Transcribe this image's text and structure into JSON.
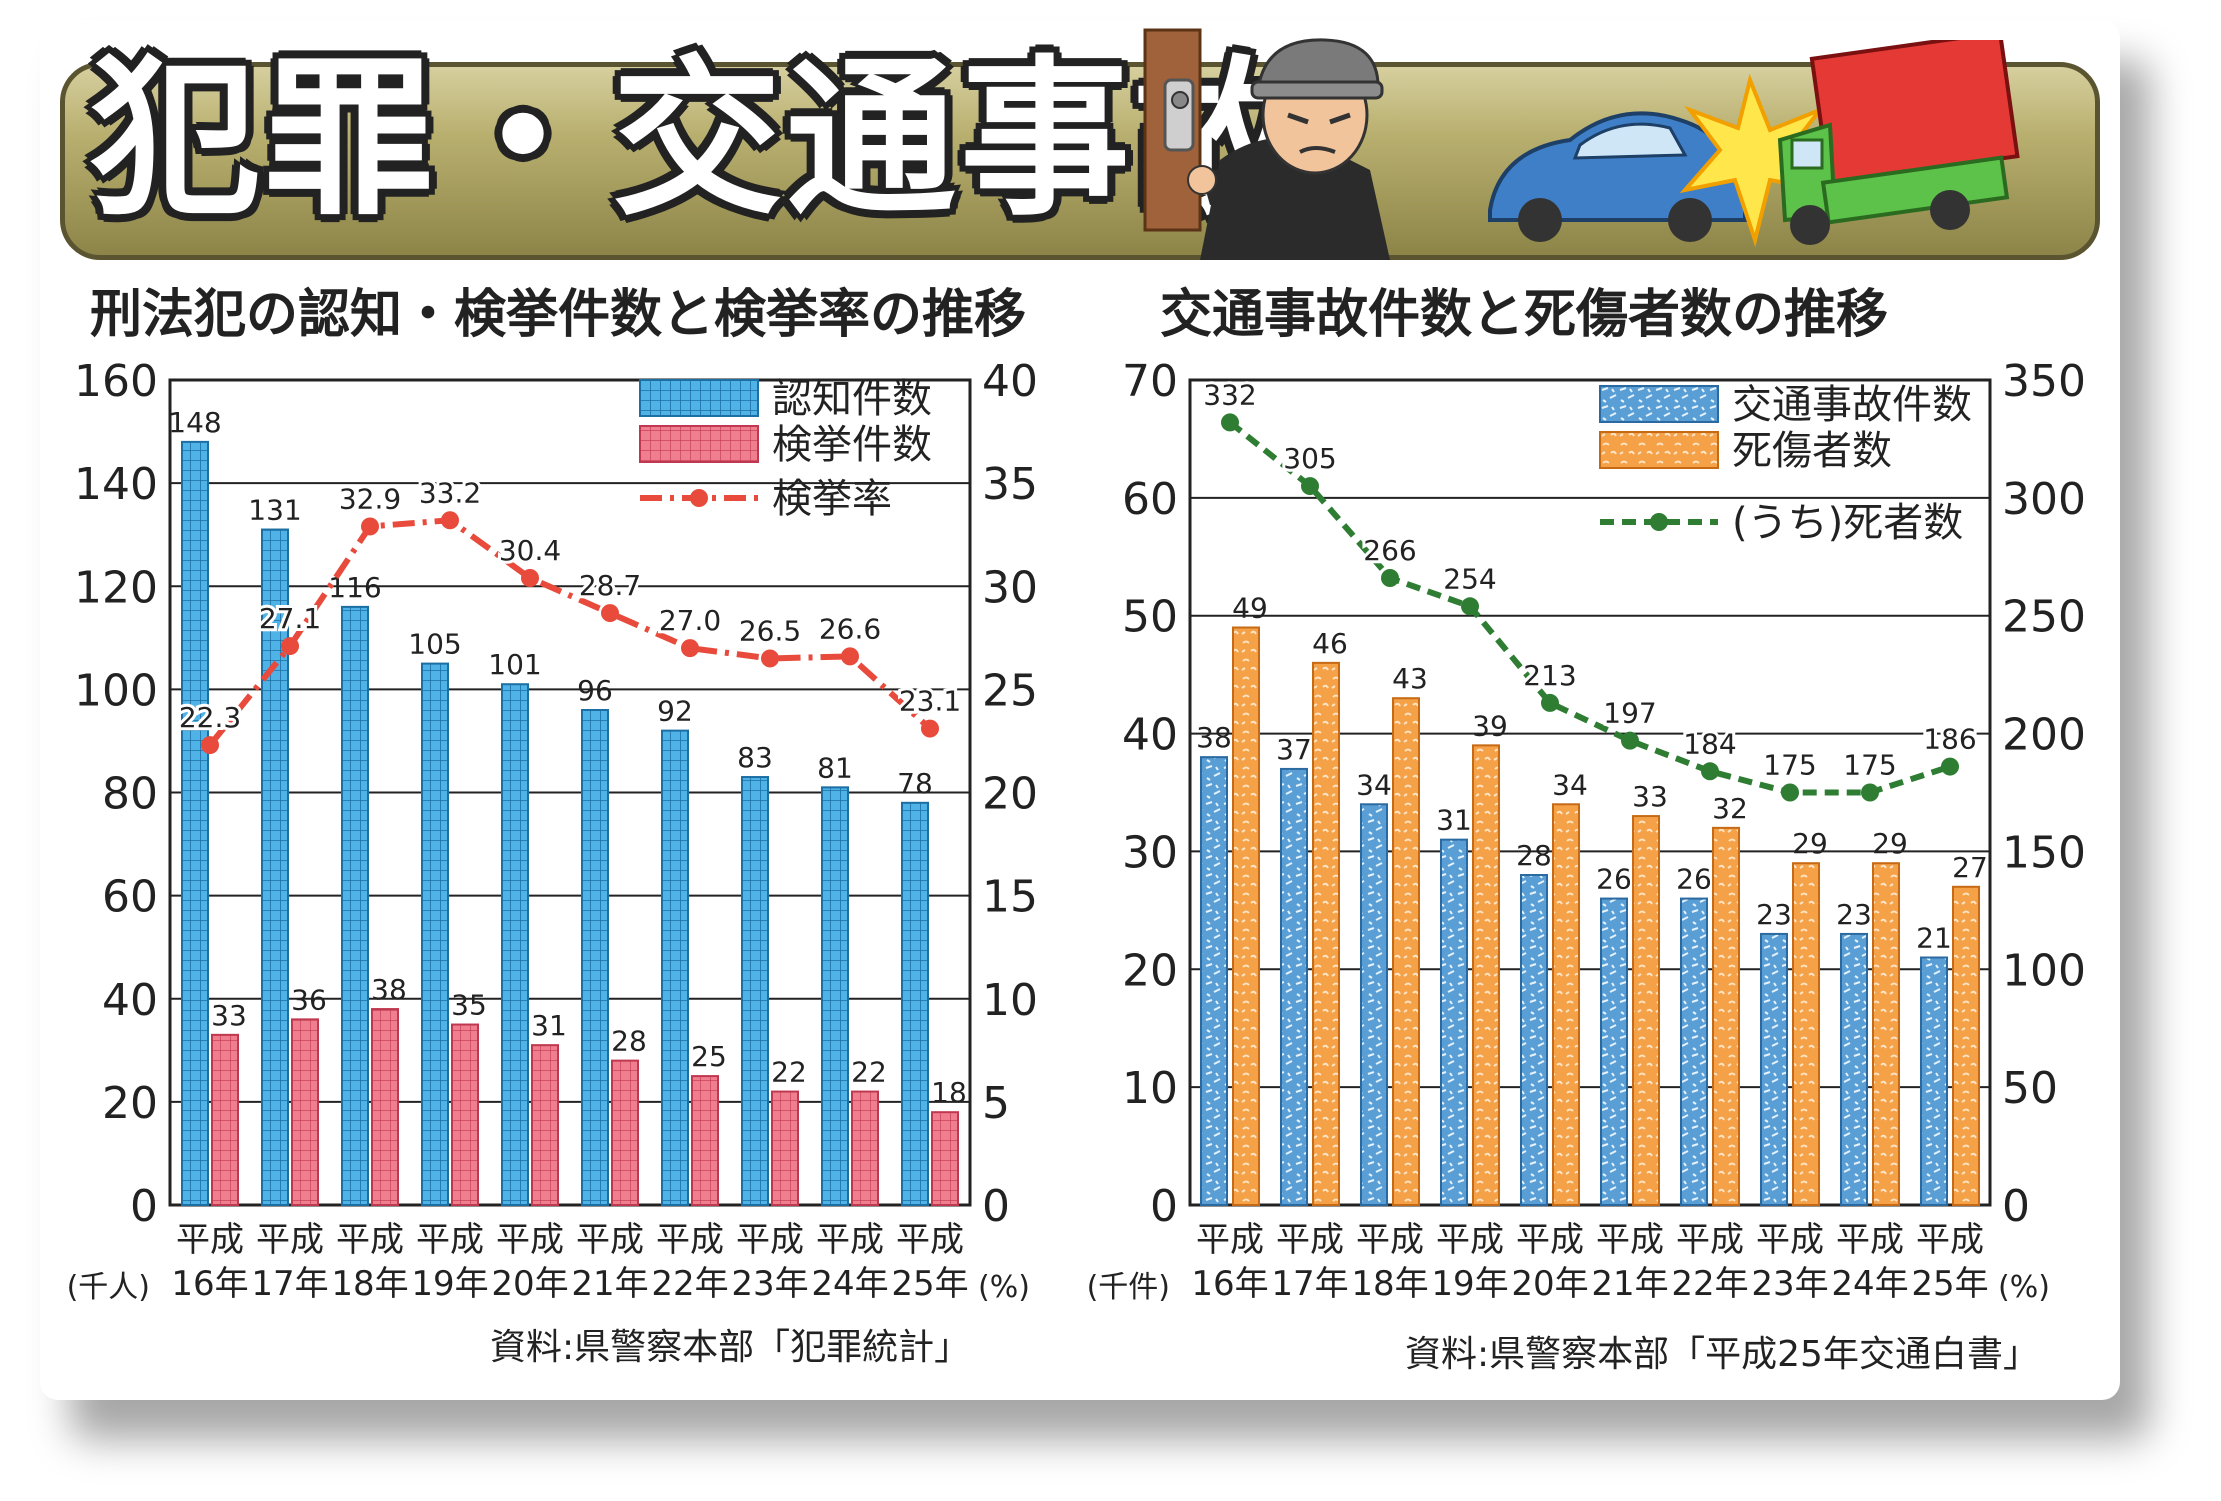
{
  "banner": {
    "title": "犯罪・交通事故"
  },
  "colors": {
    "blue": "#4fb3e8",
    "pink": "#ef7f8f",
    "red_line": "#e84a3c",
    "orange": "#f4a148",
    "green_line": "#2e7d32"
  },
  "chart_data": [
    {
      "type": "bar",
      "title": "刑法犯の認知・検挙件数と検挙率の推移",
      "categories": [
        "平成16年",
        "平成17年",
        "平成18年",
        "平成19年",
        "平成20年",
        "平成21年",
        "平成22年",
        "平成23年",
        "平成24年",
        "平成25年"
      ],
      "category_lines": [
        [
          "平成",
          "16年"
        ],
        [
          "平成",
          "17年"
        ],
        [
          "平成",
          "18年"
        ],
        [
          "平成",
          "19年"
        ],
        [
          "平成",
          "20年"
        ],
        [
          "平成",
          "21年"
        ],
        [
          "平成",
          "22年"
        ],
        [
          "平成",
          "23年"
        ],
        [
          "平成",
          "24年"
        ],
        [
          "平成",
          "25年"
        ]
      ],
      "series": [
        {
          "name": "認知件数",
          "type": "bar",
          "axis": "left",
          "values": [
            148,
            131,
            116,
            105,
            101,
            96,
            92,
            83,
            81,
            78
          ]
        },
        {
          "name": "検挙件数",
          "type": "bar",
          "axis": "left",
          "values": [
            33,
            36,
            38,
            35,
            31,
            28,
            25,
            22,
            22,
            18
          ]
        },
        {
          "name": "検挙率",
          "type": "line",
          "axis": "right",
          "values": [
            22.3,
            27.1,
            32.9,
            33.2,
            30.4,
            28.7,
            27.0,
            26.5,
            26.6,
            23.1
          ]
        }
      ],
      "value_labels": [
        [
          "148",
          "131",
          "116",
          "105",
          "101",
          "96",
          "92",
          "83",
          "81",
          "78"
        ],
        [
          "33",
          "36",
          "38",
          "35",
          "31",
          "28",
          "25",
          "22",
          "22",
          "18"
        ],
        [
          "22.3",
          "27.1",
          "32.9",
          "33.2",
          "30.4",
          "28.7",
          "27.0",
          "26.5",
          "26.6",
          "23.1"
        ]
      ],
      "ylim": [
        0,
        160
      ],
      "y_ticks": [
        0,
        20,
        40,
        60,
        80,
        100,
        120,
        140,
        160
      ],
      "y2lim": [
        0,
        40
      ],
      "y2_ticks": [
        0,
        5,
        10,
        15,
        20,
        25,
        30,
        35,
        40
      ],
      "ylabel": "(千人)",
      "y2label": "(%)",
      "grid": true,
      "legend_position": "top-right",
      "source": "資料:県警察本部「犯罪統計」"
    },
    {
      "type": "bar",
      "title": "交通事故件数と死傷者数の推移",
      "categories": [
        "平成16年",
        "平成17年",
        "平成18年",
        "平成19年",
        "平成20年",
        "平成21年",
        "平成22年",
        "平成23年",
        "平成24年",
        "平成25年"
      ],
      "category_lines": [
        [
          "平成",
          "16年"
        ],
        [
          "平成",
          "17年"
        ],
        [
          "平成",
          "18年"
        ],
        [
          "平成",
          "19年"
        ],
        [
          "平成",
          "20年"
        ],
        [
          "平成",
          "21年"
        ],
        [
          "平成",
          "22年"
        ],
        [
          "平成",
          "23年"
        ],
        [
          "平成",
          "24年"
        ],
        [
          "平成",
          "25年"
        ]
      ],
      "series": [
        {
          "name": "交通事故件数",
          "type": "bar",
          "axis": "left",
          "values": [
            38,
            37,
            34,
            31,
            28,
            26,
            26,
            23,
            23,
            21
          ]
        },
        {
          "name": "死傷者数",
          "type": "bar",
          "axis": "left",
          "values": [
            49,
            46,
            43,
            39,
            34,
            33,
            32,
            29,
            29,
            27
          ]
        },
        {
          "name": "(うち)死者数",
          "type": "line",
          "axis": "right",
          "values": [
            332,
            305,
            266,
            254,
            213,
            197,
            184,
            175,
            175,
            186
          ]
        }
      ],
      "value_labels": [
        [
          "38",
          "37",
          "34",
          "31",
          "28",
          "26",
          "26",
          "23",
          "23",
          "21"
        ],
        [
          "49",
          "46",
          "43",
          "39",
          "34",
          "33",
          "32",
          "29",
          "29",
          "27"
        ],
        [
          "332",
          "305",
          "266",
          "254",
          "213",
          "197",
          "184",
          "175",
          "175",
          "186"
        ]
      ],
      "ylim": [
        0,
        70
      ],
      "y_ticks": [
        0,
        10,
        20,
        30,
        40,
        50,
        60,
        70
      ],
      "y2lim": [
        0,
        350
      ],
      "y2_ticks": [
        0,
        50,
        100,
        150,
        200,
        250,
        300,
        350
      ],
      "ylabel": "(千件)",
      "y2label": "(%)",
      "grid": true,
      "legend_position": "top-right",
      "source": "資料:県警察本部「平成25年交通白書」"
    }
  ]
}
